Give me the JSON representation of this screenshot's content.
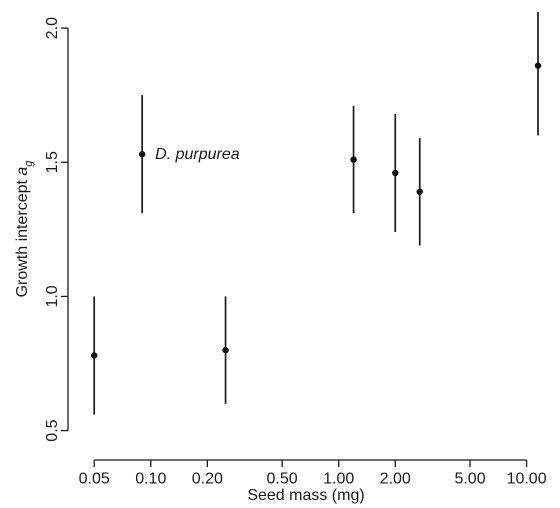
{
  "chart_data": {
    "type": "scatter",
    "xlabel": "Seed mass (mg)",
    "ylabel_main": "Growth intercept ",
    "ylabel_symbol": "a",
    "ylabel_subscript": "g",
    "x_scale": "log",
    "xlim": [
      0.04,
      13
    ],
    "ylim": [
      0.45,
      2.06
    ],
    "x_ticks": [
      {
        "value": 0.05,
        "label": "0.05"
      },
      {
        "value": 0.1,
        "label": "0.10"
      },
      {
        "value": 0.2,
        "label": "0.20"
      },
      {
        "value": 0.5,
        "label": "0.50"
      },
      {
        "value": 1,
        "label": "1.00"
      },
      {
        "value": 2,
        "label": "2.00"
      },
      {
        "value": 5,
        "label": "5.00"
      },
      {
        "value": 10,
        "label": "10.00"
      }
    ],
    "y_ticks": [
      {
        "value": 0.5,
        "label": "0.5"
      },
      {
        "value": 1.0,
        "label": "1.0"
      },
      {
        "value": 1.5,
        "label": "1.5"
      },
      {
        "value": 2.0,
        "label": "2.0"
      }
    ],
    "grid": false,
    "points": [
      {
        "x": 0.05,
        "y": 0.78,
        "lower": 0.56,
        "upper": 1.0
      },
      {
        "x": 0.09,
        "y": 1.53,
        "lower": 1.31,
        "upper": 1.75
      },
      {
        "x": 0.25,
        "y": 0.8,
        "lower": 0.6,
        "upper": 1.0
      },
      {
        "x": 1.2,
        "y": 1.51,
        "lower": 1.31,
        "upper": 1.71
      },
      {
        "x": 2.0,
        "y": 1.46,
        "lower": 1.24,
        "upper": 1.68
      },
      {
        "x": 2.7,
        "y": 1.39,
        "lower": 1.19,
        "upper": 1.59
      },
      {
        "x": 11.5,
        "y": 1.86,
        "lower": 1.6,
        "upper": 2.06
      }
    ],
    "annotations": [
      {
        "text": "D. purpurea",
        "x": 0.09,
        "y": 1.53
      }
    ]
  }
}
